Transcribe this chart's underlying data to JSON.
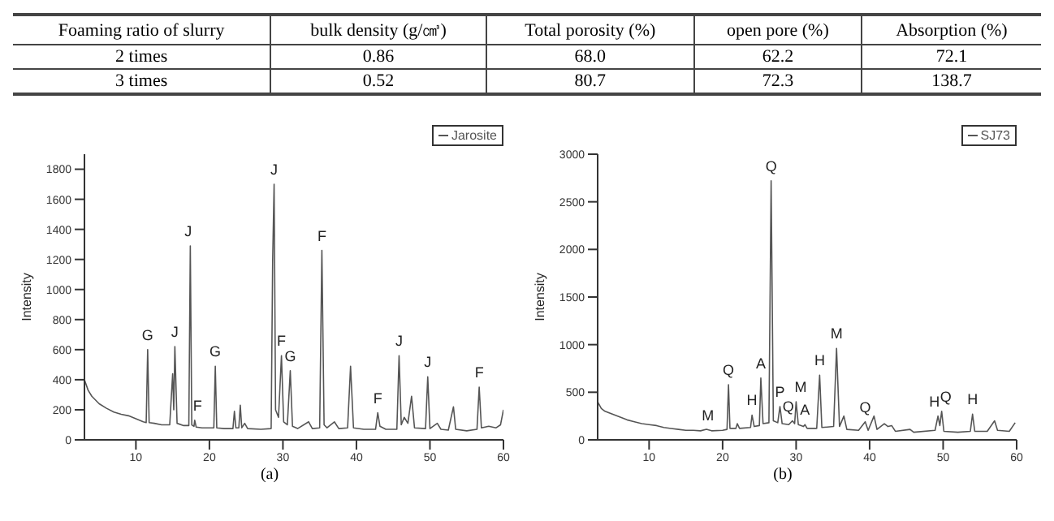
{
  "chart_data": [
    {
      "type": "other",
      "ylabel": "Foaming ratio of slurry",
      "categories": [
        "bulk density (g/㎤)",
        "Total porosity (%)",
        "open pore (%)",
        "Absorption (%)"
      ],
      "y_categories": [
        "2 times",
        "3 times"
      ],
      "cell_labels": [
        [
          "0.86",
          "68.0",
          "62.2",
          "72.1"
        ],
        [
          "0.52",
          "80.7",
          "72.3",
          "138.7"
        ]
      ]
    },
    {
      "type": "line",
      "ylabel": "Intensity",
      "legend": "top right",
      "marker": "none",
      "line_style": "solid",
      "xlim": [
        3,
        60
      ],
      "xticks": [
        10,
        20,
        30,
        40,
        50,
        60
      ],
      "ylim": [
        0,
        1900
      ],
      "yticks": [
        0,
        200,
        400,
        600,
        800,
        1000,
        1200,
        1400,
        1600,
        1800
      ],
      "x": [
        3,
        3.5,
        4,
        5,
        6,
        7,
        8,
        9,
        10,
        11,
        11.4,
        11.6,
        11.8,
        12.5,
        13.5,
        14.6,
        15.0,
        15.15,
        15.3,
        15.6,
        16.5,
        17.2,
        17.4,
        17.6,
        17.9,
        18.0,
        18.2,
        19,
        20.6,
        20.8,
        21.0,
        22,
        23.2,
        23.4,
        23.6,
        24.0,
        24.2,
        24.4,
        24.8,
        25.2,
        27,
        28.4,
        28.6,
        28.8,
        29.0,
        29.4,
        29.8,
        30.1,
        30.6,
        31.0,
        31.3,
        32,
        33.5,
        34,
        35.0,
        35.3,
        35.6,
        36,
        37,
        37.6,
        38.8,
        39.2,
        39.6,
        41,
        42.6,
        42.9,
        43.2,
        44,
        45.5,
        45.8,
        46.1,
        46.5,
        47,
        47.5,
        47.9,
        49.4,
        49.7,
        50.0,
        51,
        51.5,
        52.5,
        53.2,
        53.5,
        55,
        56.4,
        56.7,
        57,
        58,
        59,
        59.6,
        60
      ],
      "series": [
        {
          "name": "Jarosite",
          "color": "#555555",
          "values": [
            400,
            330,
            290,
            240,
            210,
            185,
            170,
            160,
            140,
            120,
            115,
            600,
            115,
            110,
            100,
            100,
            440,
            200,
            620,
            110,
            95,
            95,
            1290,
            100,
            90,
            130,
            85,
            80,
            80,
            490,
            80,
            75,
            75,
            190,
            80,
            80,
            230,
            80,
            110,
            75,
            70,
            75,
            1180,
            1700,
            200,
            150,
            560,
            120,
            100,
            460,
            90,
            75,
            120,
            75,
            80,
            1260,
            100,
            80,
            120,
            75,
            80,
            490,
            80,
            70,
            70,
            180,
            90,
            70,
            70,
            560,
            100,
            150,
            110,
            290,
            80,
            75,
            420,
            75,
            110,
            70,
            65,
            220,
            70,
            60,
            70,
            350,
            80,
            90,
            80,
            100,
            200
          ]
        }
      ],
      "annotations": [
        {
          "text": "G",
          "x": 11.6,
          "y": 600
        },
        {
          "text": "J",
          "x": 15.3,
          "y": 620
        },
        {
          "text": "J",
          "x": 17.4,
          "y": 1290
        },
        {
          "text": "F",
          "x": 18.0,
          "y": 130
        },
        {
          "text": "G",
          "x": 20.8,
          "y": 490
        },
        {
          "text": "J",
          "x": 28.8,
          "y": 1700
        },
        {
          "text": "F",
          "x": 29.8,
          "y": 560
        },
        {
          "text": "G",
          "x": 31.0,
          "y": 460
        },
        {
          "text": "F",
          "x": 35.3,
          "y": 1260
        },
        {
          "text": "F",
          "x": 42.9,
          "y": 180
        },
        {
          "text": "J",
          "x": 45.8,
          "y": 560
        },
        {
          "text": "J",
          "x": 49.7,
          "y": 420
        },
        {
          "text": "F",
          "x": 56.7,
          "y": 350
        },
        "(a)"
      ]
    },
    {
      "type": "line",
      "ylabel": "Intensity",
      "legend": "top right",
      "marker": "none",
      "line_style": "solid",
      "xlim": [
        3,
        60
      ],
      "xticks": [
        10,
        20,
        30,
        40,
        50,
        60
      ],
      "ylim": [
        0,
        3000
      ],
      "yticks": [
        0,
        500,
        1000,
        1500,
        2000,
        2500,
        3000
      ],
      "x": [
        3,
        3.5,
        4,
        5,
        6,
        7,
        8,
        9,
        10,
        11,
        12,
        13,
        14,
        15,
        16,
        17,
        17.8,
        18.5,
        20,
        20.6,
        20.8,
        21.0,
        21.8,
        22,
        22.3,
        23.8,
        24.0,
        24.3,
        25.0,
        25.2,
        25.5,
        26.3,
        26.6,
        26.9,
        27.5,
        27.8,
        28.1,
        29.0,
        29.5,
        29.8,
        30.0,
        30.3,
        31.0,
        31.2,
        31.5,
        32.8,
        33.2,
        33.5,
        35.1,
        35.5,
        35.9,
        36.5,
        36.9,
        38.5,
        39.4,
        39.8,
        40.6,
        41,
        42,
        42.5,
        43,
        43.5,
        45.5,
        46,
        48.9,
        49.3,
        49.55,
        49.8,
        50.1,
        52,
        53.7,
        54,
        54.3,
        56,
        57,
        57.4,
        59,
        59.8
      ],
      "series": [
        {
          "name": "SJ73",
          "color": "#555555",
          "values": [
            400,
            330,
            300,
            270,
            240,
            210,
            190,
            170,
            160,
            150,
            130,
            120,
            110,
            100,
            100,
            95,
            110,
            95,
            100,
            110,
            580,
            120,
            120,
            170,
            120,
            130,
            260,
            140,
            150,
            650,
            170,
            180,
            2720,
            200,
            180,
            350,
            170,
            160,
            200,
            170,
            400,
            160,
            140,
            160,
            120,
            120,
            680,
            130,
            140,
            960,
            140,
            250,
            110,
            100,
            190,
            100,
            250,
            110,
            170,
            140,
            150,
            90,
            110,
            80,
            100,
            250,
            150,
            300,
            90,
            80,
            90,
            270,
            90,
            90,
            200,
            100,
            90,
            180
          ]
        }
      ],
      "annotations": [
        {
          "text": "M",
          "x": 18,
          "y": 100
        },
        {
          "text": "Q",
          "x": 20.8,
          "y": 580
        },
        {
          "text": "H",
          "x": 24.0,
          "y": 260
        },
        {
          "text": "A",
          "x": 25.2,
          "y": 650
        },
        {
          "text": "Q",
          "x": 26.6,
          "y": 2720
        },
        {
          "text": "P",
          "x": 27.8,
          "y": 350
        },
        {
          "text": "Q",
          "x": 29.5,
          "y": 200
        },
        {
          "text": "M",
          "x": 30.0,
          "y": 400
        },
        {
          "text": "A",
          "x": 31.2,
          "y": 160
        },
        {
          "text": "H",
          "x": 33.2,
          "y": 680
        },
        {
          "text": "M",
          "x": 35.5,
          "y": 960
        },
        {
          "text": "Q",
          "x": 39.4,
          "y": 190
        },
        {
          "text": "H",
          "x": 49.3,
          "y": 250
        },
        {
          "text": "Q",
          "x": 49.8,
          "y": 300
        },
        {
          "text": "H",
          "x": 54,
          "y": 270
        },
        "(b)"
      ]
    }
  ]
}
